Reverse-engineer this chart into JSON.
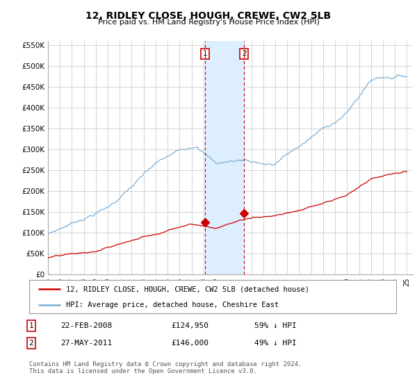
{
  "title": "12, RIDLEY CLOSE, HOUGH, CREWE, CW2 5LB",
  "subtitle": "Price paid vs. HM Land Registry's House Price Index (HPI)",
  "ylim": [
    0,
    560000
  ],
  "yticks": [
    0,
    50000,
    100000,
    150000,
    200000,
    250000,
    300000,
    350000,
    400000,
    450000,
    500000,
    550000
  ],
  "ytick_labels": [
    "£0",
    "£50K",
    "£100K",
    "£150K",
    "£200K",
    "£250K",
    "£300K",
    "£350K",
    "£400K",
    "£450K",
    "£500K",
    "£550K"
  ],
  "hpi_color": "#7bafd4",
  "sale_color": "#cc0000",
  "transaction1_date": 2008.13,
  "transaction1_price": 124950,
  "transaction2_date": 2011.4,
  "transaction2_price": 146000,
  "legend_sale_label": "12, RIDLEY CLOSE, HOUGH, CREWE, CW2 5LB (detached house)",
  "legend_hpi_label": "HPI: Average price, detached house, Cheshire East",
  "table_row1": [
    "1",
    "22-FEB-2008",
    "£124,950",
    "59% ↓ HPI"
  ],
  "table_row2": [
    "2",
    "27-MAY-2011",
    "£146,000",
    "49% ↓ HPI"
  ],
  "footer": "Contains HM Land Registry data © Crown copyright and database right 2024.\nThis data is licensed under the Open Government Licence v3.0.",
  "bg_color": "#ffffff",
  "grid_color": "#cccccc",
  "span_color": "#ddeeff"
}
